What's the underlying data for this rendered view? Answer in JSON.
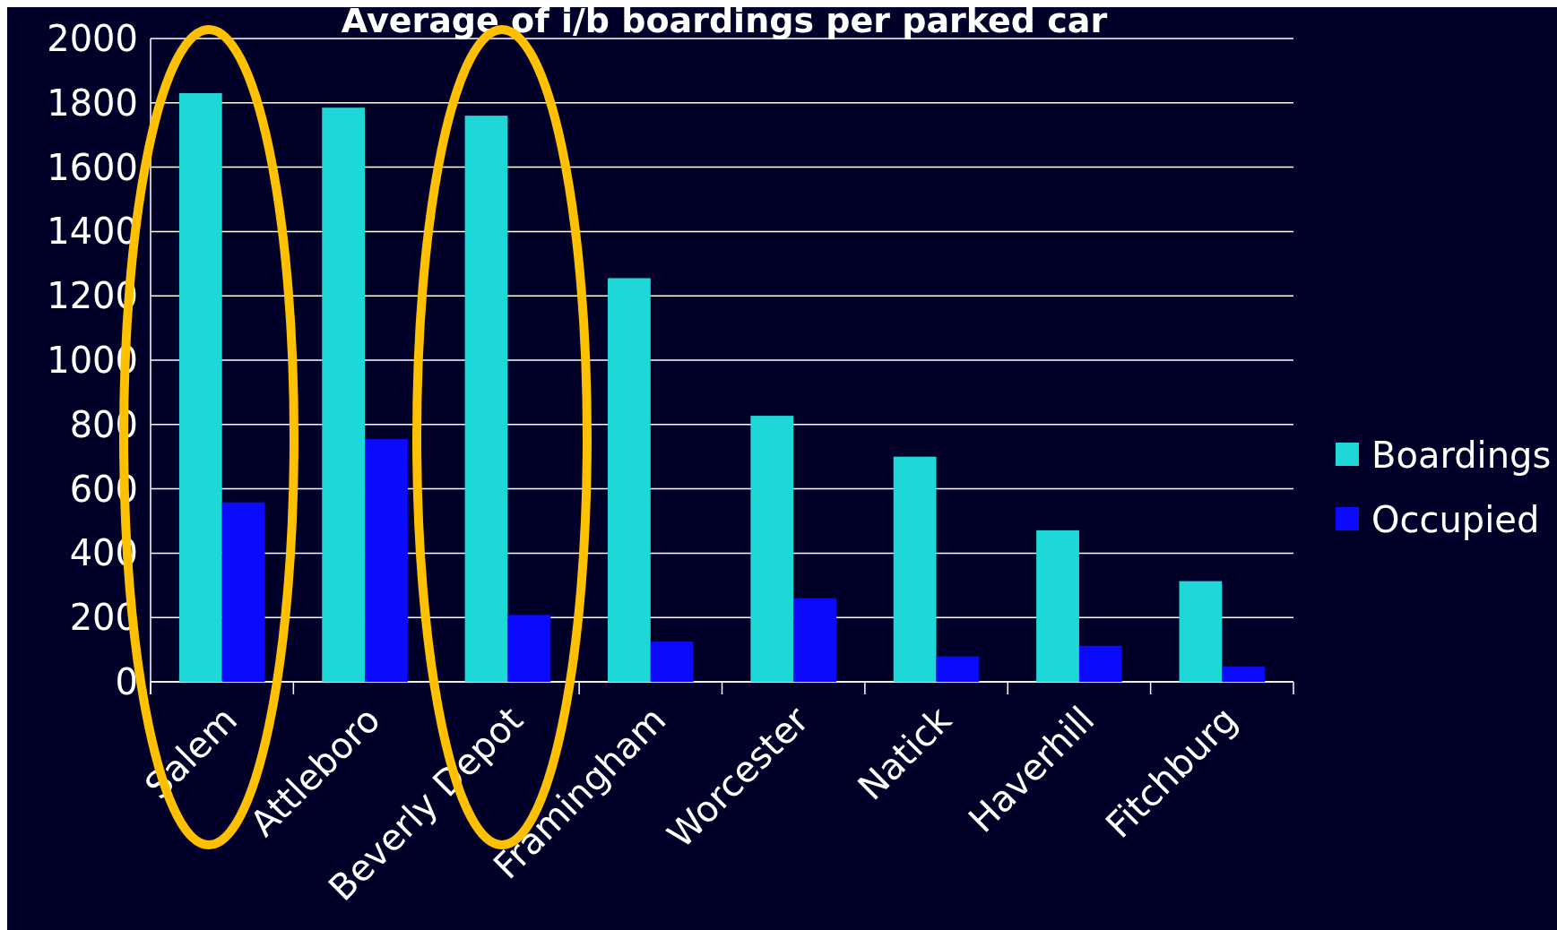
{
  "chart_data": {
    "type": "bar",
    "title": "Average of i/b boardings per parked car",
    "categories": [
      "Salem",
      "Attleboro",
      "Beverly Depot",
      "Framingham",
      "Worcester",
      "Natick",
      "Haverhill",
      "Fitchburg"
    ],
    "series": [
      {
        "name": "Boardings",
        "color": "#1ed8d8",
        "values": [
          1830,
          1785,
          1760,
          1255,
          827,
          700,
          471,
          313
        ]
      },
      {
        "name": "Occupied",
        "color": "#0a0aff",
        "values": [
          558,
          755,
          208,
          125,
          260,
          79,
          112,
          47
        ]
      }
    ],
    "ylim": [
      0,
      2000
    ],
    "yticks": [
      0,
      200,
      400,
      600,
      800,
      1000,
      1200,
      1400,
      1600,
      1800,
      2000
    ],
    "grid": "y",
    "legend": "right"
  }
}
